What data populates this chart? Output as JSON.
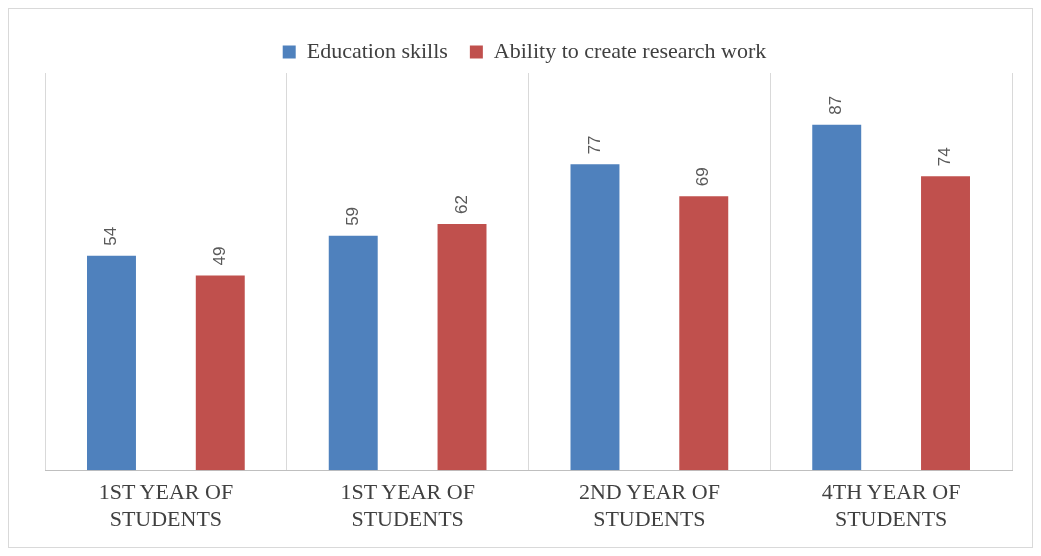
{
  "chart_data": {
    "type": "bar",
    "categories": [
      "1ST YEAR OF STUDENTS",
      "1ST YEAR OF STUDENTS",
      "2ND YEAR OF STUDENTS",
      "4TH YEAR OF STUDENTS"
    ],
    "series": [
      {
        "name": "Education skills",
        "color": "#4f81bd",
        "values": [
          54,
          59,
          77,
          87
        ]
      },
      {
        "name": "Ability to create research work",
        "color": "#c0504d",
        "values": [
          49,
          62,
          69,
          74
        ]
      }
    ],
    "ylim": [
      0,
      100
    ],
    "data_labels": true,
    "grid": "x",
    "legend": "top"
  }
}
